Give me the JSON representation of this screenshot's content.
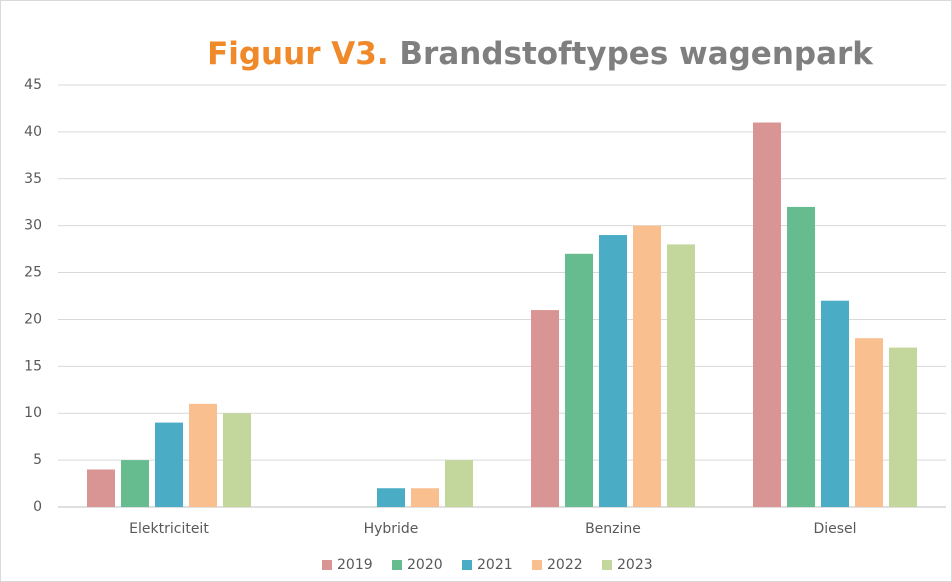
{
  "chart_data": {
    "type": "bar",
    "figure_label": "Figuur V3.",
    "title": "Brandstoftypes wagenpark",
    "categories": [
      "Elektriciteit",
      "Hybride",
      "Benzine",
      "Diesel"
    ],
    "series": [
      {
        "name": "2019",
        "color": "#d99594",
        "values": [
          4,
          0,
          21,
          41
        ]
      },
      {
        "name": "2020",
        "color": "#66bb8f",
        "values": [
          5,
          0,
          27,
          32
        ]
      },
      {
        "name": "2021",
        "color": "#4bacc6",
        "values": [
          9,
          2,
          29,
          22
        ]
      },
      {
        "name": "2022",
        "color": "#f9bf8f",
        "values": [
          11,
          2,
          30,
          18
        ]
      },
      {
        "name": "2023",
        "color": "#c3d69b",
        "values": [
          10,
          5,
          28,
          17
        ]
      }
    ],
    "ylim": [
      0,
      45
    ],
    "yticks": [
      0,
      5,
      10,
      15,
      20,
      25,
      30,
      35,
      40,
      45
    ],
    "grid": true,
    "legend": "bottom"
  }
}
